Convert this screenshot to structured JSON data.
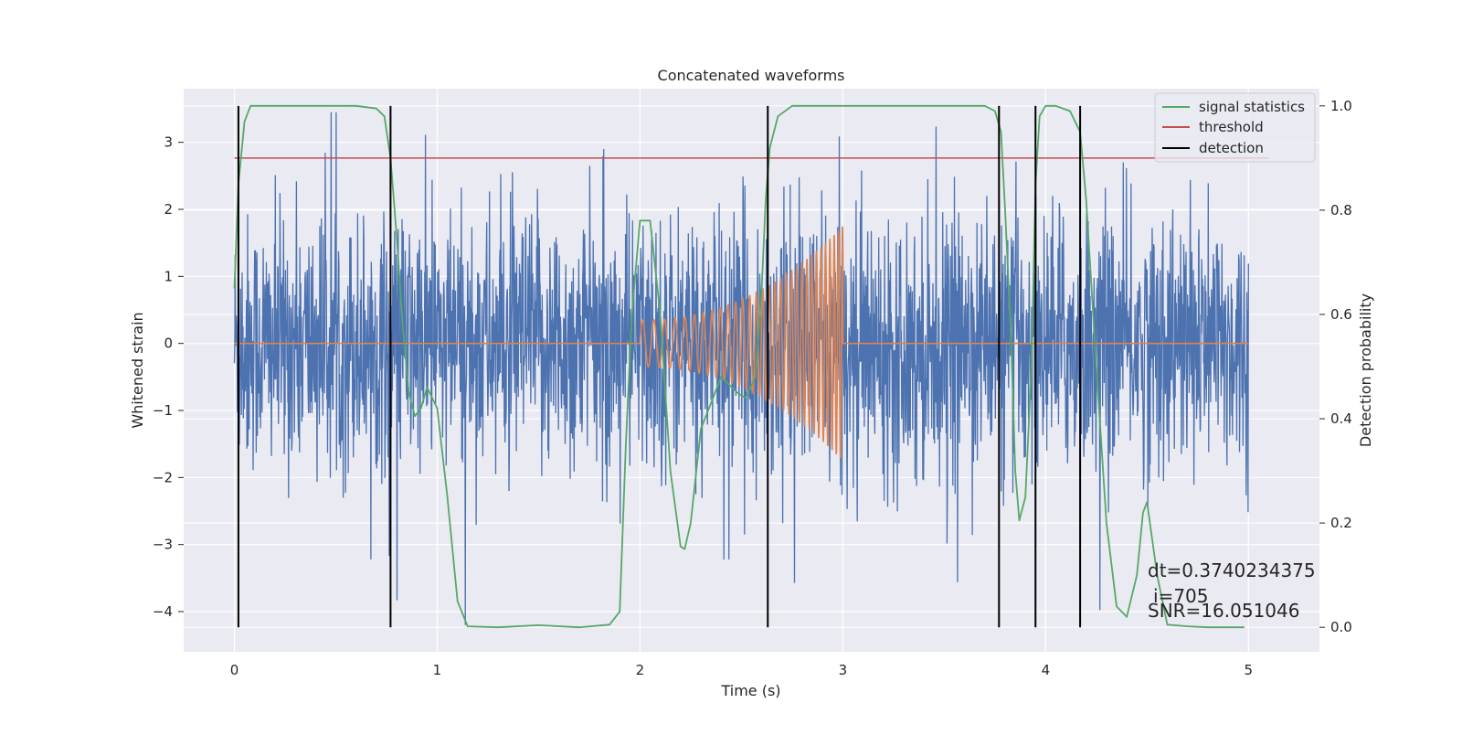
{
  "chart_data": {
    "type": "line",
    "title": "Concatenated waveforms",
    "xlabel": "Time (s)",
    "ylabel": "Whitened strain",
    "y2label": "Detection probability",
    "xlim": [
      -0.25,
      5.35
    ],
    "ylim": [
      -4.6,
      3.8
    ],
    "y2lim": [
      -0.047,
      1.033
    ],
    "xticks": [
      "0",
      "1",
      "2",
      "3",
      "4",
      "5"
    ],
    "yticks": [
      "3",
      "2",
      "1",
      "0",
      "−1",
      "−2",
      "−3",
      "−4"
    ],
    "y2ticks": [
      "1.0",
      "0.8",
      "0.6",
      "0.4",
      "0.2",
      "0.0"
    ],
    "grid": true,
    "legend_position": "top-right",
    "colors": {
      "strain": "#4c72b0",
      "injection": "#dd8452",
      "signal_statistics": "#55a868",
      "threshold": "#c44e52",
      "detection": "#000000",
      "background": "#eaeaf2"
    },
    "legend": [
      {
        "label": "signal statistics",
        "color": "#55a868"
      },
      {
        "label": "threshold",
        "color": "#c44e52"
      },
      {
        "label": "detection",
        "color": "#000000"
      }
    ],
    "strain_noise": {
      "x_range": [
        0,
        5
      ],
      "typical_range": [
        -2.5,
        2.8
      ],
      "extremes": [
        -4.2,
        3.45
      ]
    },
    "injected_waveform": {
      "x_range": [
        2.0,
        3.0
      ],
      "amplitude_start": 0.35,
      "amplitude_end": 1.75,
      "frequency_start_hz": 18,
      "frequency_end_hz": 50
    },
    "signal_statistics": {
      "x": [
        0,
        0.02,
        0.05,
        0.08,
        0.12,
        0.2,
        0.4,
        0.6,
        0.7,
        0.74,
        0.77,
        0.8,
        0.83,
        0.86,
        0.89,
        0.92,
        0.95,
        1.0,
        1.05,
        1.1,
        1.15,
        1.3,
        1.5,
        1.7,
        1.85,
        1.9,
        1.93,
        1.96,
        2.0,
        2.05,
        2.1,
        2.15,
        2.2,
        2.22,
        2.25,
        2.3,
        2.4,
        2.48,
        2.52,
        2.57,
        2.6,
        2.62,
        2.64,
        2.68,
        2.75,
        3.0,
        3.5,
        3.7,
        3.75,
        3.78,
        3.8,
        3.83,
        3.85,
        3.87,
        3.9,
        3.93,
        3.95,
        3.97,
        4.0,
        4.05,
        4.12,
        4.17,
        4.2,
        4.25,
        4.3,
        4.35,
        4.4,
        4.45,
        4.48,
        4.5,
        4.55,
        4.6,
        4.7,
        4.8,
        4.9,
        4.98
      ],
      "y": [
        0.65,
        0.85,
        0.97,
        1.0,
        1.0,
        1.0,
        1.0,
        1.0,
        0.995,
        0.98,
        0.9,
        0.75,
        0.58,
        0.45,
        0.405,
        0.42,
        0.46,
        0.42,
        0.25,
        0.05,
        0.002,
        0.0,
        0.004,
        0.0,
        0.005,
        0.03,
        0.35,
        0.6,
        0.78,
        0.78,
        0.6,
        0.3,
        0.155,
        0.15,
        0.2,
        0.38,
        0.48,
        0.45,
        0.44,
        0.48,
        0.65,
        0.82,
        0.92,
        0.98,
        1.0,
        1.0,
        1.0,
        1.0,
        0.99,
        0.95,
        0.8,
        0.55,
        0.3,
        0.205,
        0.25,
        0.5,
        0.85,
        0.98,
        1.0,
        1.0,
        0.99,
        0.95,
        0.82,
        0.5,
        0.2,
        0.04,
        0.02,
        0.1,
        0.22,
        0.24,
        0.1,
        0.005,
        0.002,
        0.0,
        0.0,
        0.0
      ]
    },
    "threshold": {
      "value": 0.9,
      "x_range": [
        0,
        5.1
      ]
    },
    "detections": [
      0.02,
      0.77,
      2.63,
      3.77,
      3.95,
      4.17
    ],
    "annotations": {
      "dt": "dt=0.3740234375",
      "i": "i=705",
      "snr": "SNR=16.051046"
    }
  }
}
